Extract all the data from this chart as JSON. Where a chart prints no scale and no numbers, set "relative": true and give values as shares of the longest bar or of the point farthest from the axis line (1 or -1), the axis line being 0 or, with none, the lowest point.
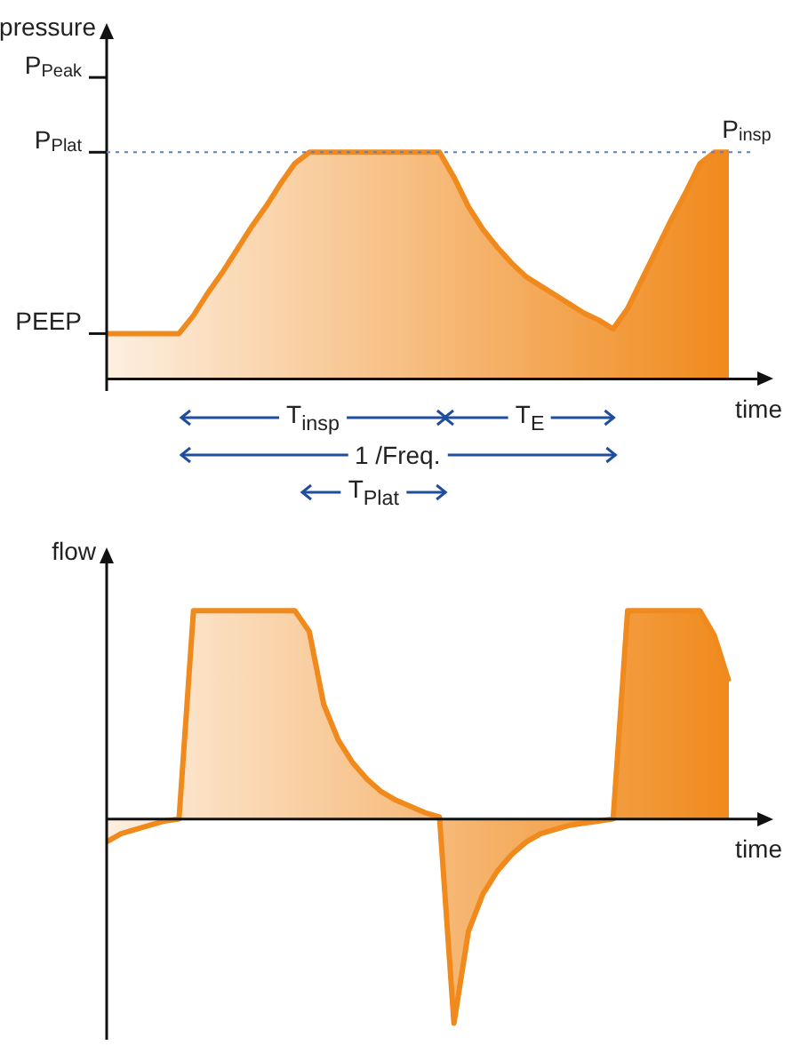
{
  "chart_data": [
    {
      "type": "area",
      "relative": true,
      "ylabel": "pressure",
      "xlabel": "time",
      "marker": "none",
      "line_style": "solid",
      "color": "#f08a1c",
      "categories": [
        null,
        null,
        null,
        null,
        null,
        null,
        null,
        null,
        null,
        null,
        null,
        null,
        null,
        null,
        null,
        null,
        null,
        null,
        null,
        null,
        null,
        null,
        null,
        null,
        null,
        null,
        null,
        null,
        null,
        null,
        null,
        null,
        null,
        null,
        null,
        null,
        null,
        null,
        null,
        null,
        null,
        null,
        null,
        null
      ],
      "values": [
        0.2,
        0.2,
        0.2,
        0.2,
        0.2,
        0.2,
        0.28,
        0.38,
        0.47,
        0.57,
        0.67,
        0.76,
        0.86,
        0.95,
        1,
        1,
        1,
        1,
        1,
        1,
        1,
        1,
        1,
        1,
        0.89,
        0.76,
        0.66,
        0.58,
        0.51,
        0.45,
        0.41,
        0.37,
        0.33,
        0.29,
        0.26,
        0.22,
        0.31,
        0.44,
        0.57,
        0.7,
        0.82,
        0.95,
        1,
        1
      ],
      "ref_lines": [
        {
          "axis": "y",
          "value": 1,
          "label": "P$_{insp}$",
          "color": "#5b7fc4",
          "line_style": "dotted"
        }
      ],
      "annotations": [
        "P$_{Peak}$",
        "P$_{Plat}$",
        "PEEP",
        "T$_{insp}$",
        "T$_{E}$",
        "1 /Freq.",
        "T$_{Plat}$"
      ]
    },
    {
      "type": "area",
      "relative": true,
      "ylabel": "flow",
      "xlabel": "time",
      "marker": "none",
      "line_style": "solid",
      "color": "#f08a1c",
      "categories": [
        null,
        null,
        null,
        null,
        null,
        null,
        null,
        null,
        null,
        null,
        null,
        null,
        null,
        null,
        null,
        null,
        null,
        null,
        null,
        null,
        null,
        null,
        null,
        null,
        null,
        null,
        null,
        null,
        null,
        null,
        null,
        null,
        null,
        null,
        null,
        null,
        null,
        null,
        null,
        null,
        null,
        null,
        null,
        null
      ],
      "values": [
        -0.11,
        -0.07,
        -0.05,
        -0.03,
        -0.01,
        0,
        1,
        1,
        1,
        1,
        1,
        1,
        1,
        1,
        0.9,
        0.55,
        0.38,
        0.27,
        0.19,
        0.13,
        0.09,
        0.06,
        0.03,
        0.01,
        -0.98,
        -0.54,
        -0.36,
        -0.25,
        -0.17,
        -0.11,
        -0.07,
        -0.05,
        -0.03,
        -0.02,
        -0.01,
        0,
        1,
        1,
        1,
        1,
        1,
        1,
        0.88,
        0.66
      ]
    }
  ]
}
